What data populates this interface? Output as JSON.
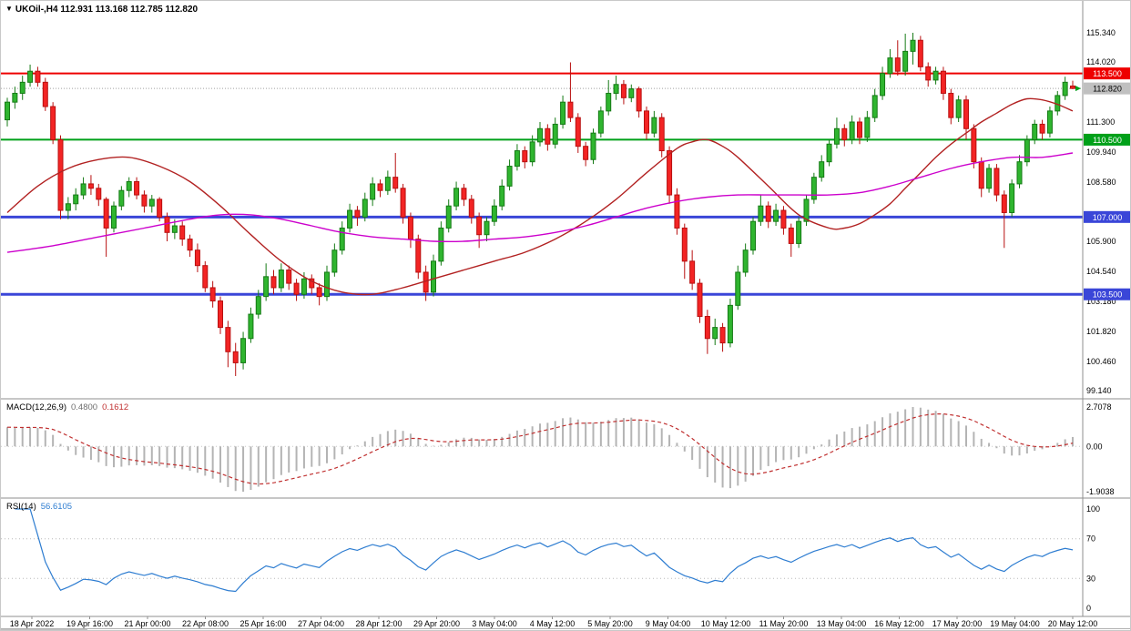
{
  "header": {
    "icon": "▼",
    "title": "UKOil-,H4 112.931 113.168 112.785 112.820"
  },
  "indicator_labels": {
    "macd": {
      "name": "MACD(12,26,9)",
      "main": "0.4800",
      "signal": "0.1612"
    },
    "rsi": {
      "name": "RSI(14)",
      "value": "56.6105"
    }
  },
  "price_axis": {
    "labels": [
      {
        "text": "115.340",
        "price": 115.34
      },
      {
        "text": "114.020",
        "price": 114.02
      },
      {
        "text": "111.300",
        "price": 111.3
      },
      {
        "text": "109.940",
        "price": 109.94
      },
      {
        "text": "108.580",
        "price": 108.58
      },
      {
        "text": "105.900",
        "price": 105.9
      },
      {
        "text": "104.540",
        "price": 104.54
      },
      {
        "text": "103.180",
        "price": 103.18
      },
      {
        "text": "101.820",
        "price": 101.82
      },
      {
        "text": "100.460",
        "price": 100.46
      },
      {
        "text": "99.140",
        "price": 99.14
      }
    ],
    "badges": [
      {
        "text": "113.500",
        "price": 113.5,
        "bg": "#ee0000",
        "fg": "#ffffff"
      },
      {
        "text": "112.820",
        "price": 112.82,
        "bg": "#c0c0c0",
        "fg": "#000000"
      },
      {
        "text": "110.500",
        "price": 110.5,
        "bg": "#00a019",
        "fg": "#ffffff"
      },
      {
        "text": "107.000",
        "price": 107.0,
        "bg": "#3a46d8",
        "fg": "#ffffff"
      },
      {
        "text": "103.500",
        "price": 103.5,
        "bg": "#3a46d8",
        "fg": "#ffffff"
      }
    ]
  },
  "time_axis": {
    "labels": [
      "18 Apr 2022",
      "19 Apr 16:00",
      "21 Apr 00:00",
      "22 Apr 08:00",
      "25 Apr 16:00",
      "27 Apr 04:00",
      "28 Apr 12:00",
      "29 Apr 20:00",
      "3 May 04:00",
      "4 May 12:00",
      "5 May 20:00",
      "9 May 04:00",
      "10 May 12:00",
      "11 May 20:00",
      "13 May 04:00",
      "16 May 12:00",
      "17 May 20:00",
      "19 May 04:00",
      "20 May 12:00"
    ]
  },
  "chart_data": {
    "type": "candlestick",
    "symbol": "UKOil-",
    "timeframe": "H4",
    "title": "UKOil-,H4",
    "last_candle": {
      "open": 112.931,
      "high": 113.168,
      "low": 112.785,
      "close": 112.82
    },
    "bid_line": {
      "price": 112.82,
      "color": "#a0a0a0"
    },
    "y_axis": {
      "min": 99.14,
      "max": 115.34
    },
    "candle_colors": {
      "bull_fill": "#2fb52f",
      "bull_border": "#157a15",
      "bear_fill": "#f32424",
      "bear_border": "#b81010"
    },
    "hlines": [
      {
        "price": 113.5,
        "color": "#ee0000",
        "width": 2,
        "label": "113.500"
      },
      {
        "price": 110.5,
        "color": "#00a019",
        "width": 2,
        "label": "110.500"
      },
      {
        "price": 107.0,
        "color": "#3a46d8",
        "width": 3,
        "label": "107.000"
      },
      {
        "price": 103.5,
        "color": "#3a46d8",
        "width": 3,
        "label": "103.500"
      }
    ],
    "candles": [
      [
        111.4,
        112.4,
        111.1,
        112.2
      ],
      [
        112.2,
        112.9,
        111.9,
        112.6
      ],
      [
        112.6,
        113.4,
        112.3,
        113.1
      ],
      [
        113.1,
        113.9,
        112.9,
        113.6
      ],
      [
        113.6,
        113.8,
        112.9,
        113.1
      ],
      [
        113.1,
        113.3,
        111.8,
        112.0
      ],
      [
        112.0,
        112.2,
        110.3,
        110.5
      ],
      [
        110.5,
        110.7,
        106.9,
        107.3
      ],
      [
        107.3,
        107.9,
        106.9,
        107.6
      ],
      [
        107.6,
        108.3,
        107.3,
        108.0
      ],
      [
        108.0,
        108.8,
        107.8,
        108.5
      ],
      [
        108.5,
        108.9,
        108.0,
        108.3
      ],
      [
        108.3,
        108.5,
        107.5,
        107.8
      ],
      [
        107.8,
        107.9,
        105.2,
        106.5
      ],
      [
        106.5,
        107.7,
        106.3,
        107.5
      ],
      [
        107.5,
        108.4,
        107.3,
        108.2
      ],
      [
        108.2,
        108.8,
        107.9,
        108.6
      ],
      [
        108.6,
        108.8,
        107.8,
        108.0
      ],
      [
        108.0,
        108.2,
        107.2,
        107.5
      ],
      [
        107.5,
        108.0,
        107.2,
        107.8
      ],
      [
        107.8,
        107.9,
        106.8,
        107.0
      ],
      [
        107.0,
        107.2,
        105.9,
        106.3
      ],
      [
        106.3,
        106.9,
        106.0,
        106.6
      ],
      [
        106.6,
        106.8,
        105.7,
        106.0
      ],
      [
        106.0,
        106.2,
        105.2,
        105.5
      ],
      [
        105.5,
        105.8,
        104.5,
        104.8
      ],
      [
        104.8,
        105.0,
        103.6,
        103.8
      ],
      [
        103.8,
        104.1,
        102.9,
        103.2
      ],
      [
        103.2,
        103.4,
        101.7,
        102.0
      ],
      [
        102.0,
        102.3,
        100.2,
        100.9
      ],
      [
        100.9,
        101.3,
        99.8,
        100.4
      ],
      [
        100.4,
        101.8,
        100.1,
        101.5
      ],
      [
        101.5,
        102.9,
        101.3,
        102.6
      ],
      [
        102.6,
        103.7,
        102.4,
        103.4
      ],
      [
        103.4,
        104.9,
        103.2,
        104.3
      ],
      [
        104.3,
        104.6,
        103.5,
        103.8
      ],
      [
        103.8,
        104.9,
        103.6,
        104.6
      ],
      [
        104.6,
        104.8,
        103.7,
        104.0
      ],
      [
        104.0,
        104.2,
        103.2,
        103.5
      ],
      [
        103.5,
        104.5,
        103.3,
        104.2
      ],
      [
        104.2,
        104.4,
        103.5,
        103.8
      ],
      [
        103.8,
        104.0,
        103.0,
        103.4
      ],
      [
        103.4,
        104.8,
        103.2,
        104.5
      ],
      [
        104.5,
        105.8,
        104.3,
        105.5
      ],
      [
        105.5,
        106.8,
        105.3,
        106.5
      ],
      [
        106.5,
        107.6,
        106.3,
        107.3
      ],
      [
        107.3,
        107.5,
        106.6,
        107.0
      ],
      [
        107.0,
        108.1,
        106.8,
        107.8
      ],
      [
        107.8,
        108.8,
        107.5,
        108.5
      ],
      [
        108.5,
        108.7,
        107.9,
        108.2
      ],
      [
        108.2,
        109.1,
        108.0,
        108.8
      ],
      [
        108.8,
        109.9,
        108.1,
        108.3
      ],
      [
        108.3,
        108.5,
        106.7,
        107.0
      ],
      [
        107.0,
        107.2,
        105.6,
        106.0
      ],
      [
        106.0,
        106.2,
        104.2,
        104.5
      ],
      [
        104.5,
        104.8,
        103.2,
        103.6
      ],
      [
        103.6,
        105.3,
        103.4,
        105.0
      ],
      [
        105.0,
        106.8,
        104.8,
        106.5
      ],
      [
        106.5,
        107.8,
        106.3,
        107.5
      ],
      [
        107.5,
        108.6,
        107.3,
        108.3
      ],
      [
        108.3,
        108.5,
        107.5,
        107.8
      ],
      [
        107.8,
        108.0,
        106.7,
        107.0
      ],
      [
        107.0,
        107.2,
        105.6,
        106.2
      ],
      [
        106.2,
        107.0,
        105.9,
        106.8
      ],
      [
        106.8,
        107.8,
        106.6,
        107.5
      ],
      [
        107.5,
        108.7,
        107.3,
        108.4
      ],
      [
        108.4,
        109.6,
        108.2,
        109.3
      ],
      [
        109.3,
        110.3,
        109.1,
        110.0
      ],
      [
        110.0,
        110.2,
        109.2,
        109.5
      ],
      [
        109.5,
        110.7,
        109.3,
        110.4
      ],
      [
        110.4,
        111.3,
        110.2,
        111.0
      ],
      [
        111.0,
        111.2,
        110.0,
        110.3
      ],
      [
        110.3,
        111.5,
        110.1,
        111.2
      ],
      [
        111.2,
        112.5,
        111.0,
        112.2
      ],
      [
        112.2,
        114.0,
        111.3,
        111.5
      ],
      [
        111.5,
        111.7,
        109.9,
        110.2
      ],
      [
        110.2,
        110.4,
        109.3,
        109.6
      ],
      [
        109.6,
        111.0,
        109.4,
        110.8
      ],
      [
        110.8,
        112.0,
        110.6,
        111.8
      ],
      [
        111.8,
        113.2,
        111.6,
        112.6
      ],
      [
        112.6,
        113.4,
        112.3,
        113.0
      ],
      [
        113.0,
        113.2,
        112.1,
        112.4
      ],
      [
        112.4,
        113.0,
        112.2,
        112.8
      ],
      [
        112.8,
        112.9,
        111.5,
        111.8
      ],
      [
        111.8,
        112.0,
        110.5,
        110.8
      ],
      [
        110.8,
        111.8,
        110.6,
        111.5
      ],
      [
        111.5,
        111.7,
        109.7,
        110.0
      ],
      [
        110.0,
        110.2,
        107.6,
        108.0
      ],
      [
        108.0,
        108.3,
        106.2,
        106.5
      ],
      [
        106.5,
        106.7,
        104.2,
        105.0
      ],
      [
        105.0,
        105.5,
        103.7,
        104.0
      ],
      [
        104.0,
        104.2,
        102.2,
        102.5
      ],
      [
        102.5,
        102.8,
        100.8,
        101.5
      ],
      [
        101.5,
        102.4,
        101.2,
        102.0
      ],
      [
        102.0,
        102.2,
        100.9,
        101.3
      ],
      [
        101.3,
        103.3,
        101.1,
        103.0
      ],
      [
        103.0,
        104.8,
        102.8,
        104.5
      ],
      [
        104.5,
        105.8,
        104.3,
        105.5
      ],
      [
        105.5,
        107.0,
        105.3,
        106.8
      ],
      [
        106.8,
        108.0,
        106.6,
        107.5
      ],
      [
        107.5,
        107.7,
        106.5,
        106.8
      ],
      [
        106.8,
        107.6,
        106.6,
        107.3
      ],
      [
        107.3,
        107.5,
        106.2,
        106.5
      ],
      [
        106.5,
        106.7,
        105.2,
        105.8
      ],
      [
        105.8,
        107.0,
        105.6,
        106.8
      ],
      [
        106.8,
        108.0,
        106.6,
        107.8
      ],
      [
        107.8,
        109.0,
        107.6,
        108.8
      ],
      [
        108.8,
        109.8,
        108.6,
        109.5
      ],
      [
        109.5,
        110.5,
        109.3,
        110.3
      ],
      [
        110.3,
        111.5,
        110.1,
        111.0
      ],
      [
        111.0,
        111.2,
        110.2,
        110.5
      ],
      [
        110.5,
        111.6,
        110.3,
        111.3
      ],
      [
        111.3,
        111.5,
        110.3,
        110.6
      ],
      [
        110.6,
        111.8,
        110.4,
        111.5
      ],
      [
        111.5,
        112.8,
        111.3,
        112.5
      ],
      [
        112.5,
        113.8,
        112.3,
        113.5
      ],
      [
        113.5,
        114.6,
        113.3,
        114.2
      ],
      [
        114.2,
        115.0,
        113.4,
        113.6
      ],
      [
        113.6,
        115.3,
        113.4,
        114.5
      ],
      [
        114.5,
        115.34,
        113.9,
        115.0
      ],
      [
        115.0,
        115.2,
        113.6,
        113.8
      ],
      [
        113.8,
        114.0,
        112.9,
        113.2
      ],
      [
        113.2,
        113.8,
        113.0,
        113.6
      ],
      [
        113.6,
        113.8,
        112.3,
        112.6
      ],
      [
        112.6,
        112.8,
        111.2,
        111.5
      ],
      [
        111.5,
        112.5,
        111.3,
        112.3
      ],
      [
        112.3,
        112.5,
        110.5,
        111.0
      ],
      [
        111.0,
        111.2,
        109.2,
        109.5
      ],
      [
        109.5,
        109.7,
        107.9,
        108.3
      ],
      [
        108.3,
        109.4,
        108.1,
        109.2
      ],
      [
        109.2,
        109.4,
        107.7,
        108.0
      ],
      [
        108.0,
        108.2,
        105.6,
        107.2
      ],
      [
        107.2,
        108.7,
        107.0,
        108.5
      ],
      [
        108.5,
        109.8,
        108.3,
        109.5
      ],
      [
        109.5,
        110.7,
        109.3,
        110.5
      ],
      [
        110.5,
        111.4,
        110.3,
        111.2
      ],
      [
        111.2,
        111.4,
        110.5,
        110.8
      ],
      [
        110.8,
        112.0,
        110.6,
        111.8
      ],
      [
        111.8,
        112.7,
        111.6,
        112.5
      ],
      [
        112.5,
        113.35,
        112.3,
        113.1
      ],
      [
        112.93,
        113.17,
        112.79,
        112.82
      ]
    ],
    "moving_averages": [
      {
        "name": "ma-fast",
        "color": "#b22222",
        "points": [
          [
            0,
            107.2
          ],
          [
            4,
            108.4
          ],
          [
            8,
            109.2
          ],
          [
            12,
            109.6
          ],
          [
            16,
            109.7
          ],
          [
            20,
            109.3
          ],
          [
            24,
            108.6
          ],
          [
            28,
            107.5
          ],
          [
            32,
            106.2
          ],
          [
            36,
            105.0
          ],
          [
            40,
            104.1
          ],
          [
            44,
            103.6
          ],
          [
            48,
            103.5
          ],
          [
            52,
            103.8
          ],
          [
            56,
            104.2
          ],
          [
            60,
            104.6
          ],
          [
            64,
            105.0
          ],
          [
            68,
            105.4
          ],
          [
            72,
            106.0
          ],
          [
            76,
            106.8
          ],
          [
            80,
            107.8
          ],
          [
            84,
            109.0
          ],
          [
            88,
            110.1
          ],
          [
            90,
            110.4
          ],
          [
            92,
            110.5
          ],
          [
            94,
            110.2
          ],
          [
            96,
            109.7
          ],
          [
            100,
            108.4
          ],
          [
            104,
            107.1
          ],
          [
            108,
            106.5
          ],
          [
            110,
            106.5
          ],
          [
            112,
            106.7
          ],
          [
            114,
            107.1
          ],
          [
            116,
            107.6
          ],
          [
            118,
            108.3
          ],
          [
            120,
            109.0
          ],
          [
            122,
            109.7
          ],
          [
            124,
            110.3
          ],
          [
            126,
            110.8
          ],
          [
            128,
            111.3
          ],
          [
            130,
            111.7
          ],
          [
            132,
            112.1
          ],
          [
            134,
            112.35
          ],
          [
            136,
            112.3
          ],
          [
            138,
            112.1
          ],
          [
            140,
            111.8
          ]
        ]
      },
      {
        "name": "ma-slow",
        "color": "#cc00cc",
        "points": [
          [
            0,
            105.4
          ],
          [
            6,
            105.7
          ],
          [
            12,
            106.1
          ],
          [
            18,
            106.5
          ],
          [
            24,
            106.9
          ],
          [
            28,
            107.1
          ],
          [
            32,
            107.1
          ],
          [
            36,
            106.9
          ],
          [
            40,
            106.6
          ],
          [
            44,
            106.3
          ],
          [
            48,
            106.1
          ],
          [
            52,
            106.0
          ],
          [
            56,
            105.9
          ],
          [
            60,
            105.9
          ],
          [
            64,
            106.0
          ],
          [
            68,
            106.1
          ],
          [
            72,
            106.3
          ],
          [
            76,
            106.6
          ],
          [
            80,
            107.0
          ],
          [
            84,
            107.4
          ],
          [
            88,
            107.7
          ],
          [
            92,
            107.9
          ],
          [
            96,
            108.0
          ],
          [
            100,
            108.0
          ],
          [
            104,
            108.0
          ],
          [
            108,
            108.0
          ],
          [
            112,
            108.1
          ],
          [
            116,
            108.4
          ],
          [
            120,
            108.8
          ],
          [
            124,
            109.2
          ],
          [
            128,
            109.5
          ],
          [
            132,
            109.7
          ],
          [
            136,
            109.7
          ],
          [
            140,
            109.9
          ]
        ]
      }
    ],
    "indicators": {
      "macd": {
        "params": [
          12,
          26,
          9
        ],
        "value_main": 0.48,
        "value_signal": 0.1612,
        "axis_labels": [
          "2.7078",
          "0.00",
          "-1.9038"
        ],
        "histogram_color": "#b4b4b4",
        "signal_color": "#c03030"
      },
      "rsi": {
        "period": 14,
        "value": 56.6105,
        "axis_labels": [
          "100",
          "70",
          "30",
          "0"
        ],
        "levels": [
          70,
          30
        ],
        "line_color": "#2e7dd1"
      }
    }
  }
}
